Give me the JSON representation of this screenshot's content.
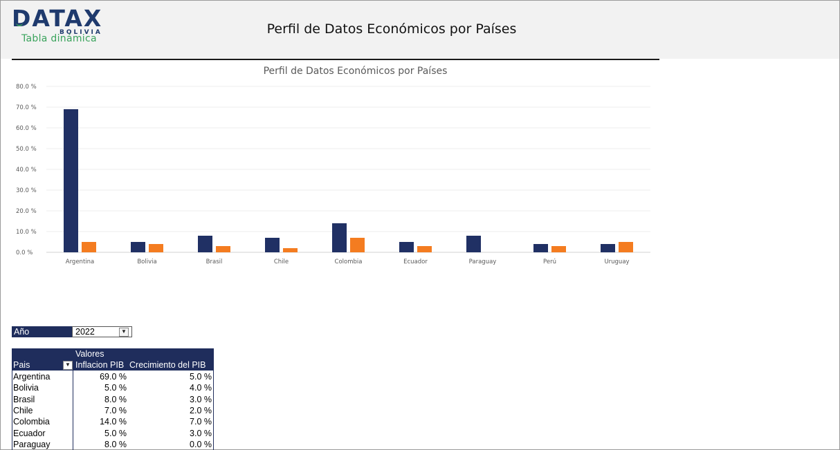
{
  "header": {
    "logo_text": "DATAX",
    "logo_sub": "BOLIVIA",
    "logo_tag": "Tabla dinámica",
    "title": "Perfil de Datos Económicos por Países"
  },
  "colors": {
    "series1": "#203064",
    "series2": "#f47c20",
    "header_bg": "#f2f2f2",
    "table_header": "#1f2d5c"
  },
  "chart_data": {
    "type": "bar",
    "title": "Perfil de Datos Económicos por Países",
    "categories": [
      "Argentina",
      "Bolivia",
      "Brasil",
      "Chile",
      "Colombia",
      "Ecuador",
      "Paraguay",
      "Perú",
      "Uruguay"
    ],
    "series": [
      {
        "name": "Inflacion PIB",
        "values": [
          69,
          5,
          8,
          7,
          14,
          5,
          8,
          4,
          4
        ]
      },
      {
        "name": "Crecimiento del PIB",
        "values": [
          5,
          4,
          3,
          2,
          7,
          3,
          0,
          3,
          5
        ]
      }
    ],
    "ylim": [
      0,
      80
    ],
    "yticks": [
      "0.0 %",
      "10.0 %",
      "20.0 %",
      "30.0 %",
      "40.0 %",
      "50.0 %",
      "60.0 %",
      "70.0 %",
      "80.0 %"
    ],
    "grid": true,
    "legend": "none"
  },
  "filter": {
    "label": "Año",
    "value": "2022",
    "button_icon": "filter-dropdown-icon"
  },
  "pivot": {
    "values_header": "Valores",
    "col_pais": "Pais",
    "col_inflacion": "Inflacion PIB",
    "col_crecimiento": "Crecimiento del PIB",
    "rows": [
      {
        "pais": "Argentina",
        "inflacion": "69.0 %",
        "crecimiento": "5.0 %"
      },
      {
        "pais": "Bolivia",
        "inflacion": "5.0 %",
        "crecimiento": "4.0 %"
      },
      {
        "pais": "Brasil",
        "inflacion": "8.0 %",
        "crecimiento": "3.0 %"
      },
      {
        "pais": "Chile",
        "inflacion": "7.0 %",
        "crecimiento": "2.0 %"
      },
      {
        "pais": "Colombia",
        "inflacion": "14.0 %",
        "crecimiento": "7.0 %"
      },
      {
        "pais": "Ecuador",
        "inflacion": "5.0 %",
        "crecimiento": "3.0 %"
      },
      {
        "pais": "Paraguay",
        "inflacion": "8.0 %",
        "crecimiento": "0.0 %"
      }
    ]
  }
}
